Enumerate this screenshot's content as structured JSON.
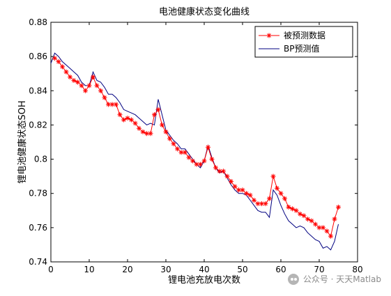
{
  "chart_data": {
    "type": "line",
    "title": "电池健康状态变化曲线",
    "xlabel": "锂电池充放电次数",
    "ylabel": "锂电池健康状态SOH",
    "xlim": [
      0,
      80
    ],
    "ylim": [
      0.74,
      0.88
    ],
    "xticks": [
      "0",
      "10",
      "20",
      "30",
      "40",
      "50",
      "60",
      "70",
      "80"
    ],
    "yticks": [
      "0.74",
      "0.76",
      "0.78",
      "0.8",
      "0.82",
      "0.84",
      "0.86",
      "0.88"
    ],
    "grid": false,
    "legend_position": "top-right",
    "series": [
      {
        "name": "被预测数据",
        "color": "#ff0000",
        "marker": "asterisk",
        "x": [
          1,
          2,
          3,
          4,
          5,
          6,
          7,
          8,
          9,
          10,
          11,
          12,
          13,
          14,
          15,
          16,
          17,
          18,
          19,
          20,
          21,
          22,
          23,
          24,
          25,
          26,
          27,
          28,
          29,
          30,
          31,
          32,
          33,
          34,
          35,
          36,
          37,
          38,
          39,
          40,
          41,
          42,
          43,
          44,
          45,
          46,
          47,
          48,
          49,
          50,
          51,
          52,
          53,
          54,
          55,
          56,
          57,
          58,
          59,
          60,
          61,
          62,
          63,
          64,
          65,
          66,
          67,
          68,
          69,
          70,
          71,
          72,
          73,
          74,
          75
        ],
        "values": [
          0.859,
          0.857,
          0.854,
          0.851,
          0.848,
          0.846,
          0.845,
          0.843,
          0.84,
          0.843,
          0.848,
          0.843,
          0.84,
          0.836,
          0.832,
          0.832,
          0.832,
          0.826,
          0.823,
          0.824,
          0.823,
          0.821,
          0.818,
          0.816,
          0.815,
          0.815,
          0.826,
          0.829,
          0.82,
          0.816,
          0.812,
          0.809,
          0.806,
          0.804,
          0.804,
          0.801,
          0.799,
          0.797,
          0.797,
          0.799,
          0.807,
          0.8,
          0.795,
          0.793,
          0.793,
          0.79,
          0.787,
          0.784,
          0.782,
          0.782,
          0.78,
          0.779,
          0.776,
          0.774,
          0.774,
          0.774,
          0.777,
          0.79,
          0.783,
          0.78,
          0.777,
          0.772,
          0.771,
          0.77,
          0.768,
          0.767,
          0.765,
          0.764,
          0.762,
          0.76,
          0.76,
          0.758,
          0.755,
          0.765,
          0.772
        ]
      },
      {
        "name": "BP预测值",
        "color": "#000080",
        "marker": "none",
        "x": [
          0,
          1,
          2,
          3,
          4,
          5,
          6,
          7,
          8,
          9,
          10,
          11,
          12,
          13,
          14,
          15,
          16,
          17,
          18,
          19,
          20,
          21,
          22,
          23,
          24,
          25,
          26,
          27,
          28,
          29,
          30,
          31,
          32,
          33,
          34,
          35,
          36,
          37,
          38,
          39,
          40,
          41,
          42,
          43,
          44,
          45,
          46,
          47,
          48,
          49,
          50,
          51,
          52,
          53,
          54,
          55,
          56,
          57,
          58,
          59,
          60,
          61,
          62,
          63,
          64,
          65,
          66,
          67,
          68,
          69,
          70,
          71,
          72,
          73,
          74,
          75
        ],
        "values": [
          0.856,
          0.862,
          0.86,
          0.857,
          0.855,
          0.853,
          0.851,
          0.849,
          0.845,
          0.843,
          0.843,
          0.851,
          0.846,
          0.845,
          0.842,
          0.838,
          0.838,
          0.836,
          0.833,
          0.829,
          0.828,
          0.827,
          0.826,
          0.824,
          0.822,
          0.82,
          0.821,
          0.82,
          0.835,
          0.826,
          0.817,
          0.814,
          0.811,
          0.809,
          0.806,
          0.806,
          0.803,
          0.8,
          0.797,
          0.795,
          0.799,
          0.808,
          0.801,
          0.795,
          0.792,
          0.793,
          0.789,
          0.785,
          0.782,
          0.78,
          0.78,
          0.779,
          0.776,
          0.773,
          0.77,
          0.769,
          0.769,
          0.766,
          0.782,
          0.779,
          0.773,
          0.768,
          0.764,
          0.762,
          0.76,
          0.761,
          0.76,
          0.757,
          0.755,
          0.753,
          0.752,
          0.748,
          0.749,
          0.747,
          0.752,
          0.762
        ]
      }
    ]
  },
  "watermark": {
    "icon": "wechat-icon",
    "text": "公众号 · 天天Matlab"
  }
}
